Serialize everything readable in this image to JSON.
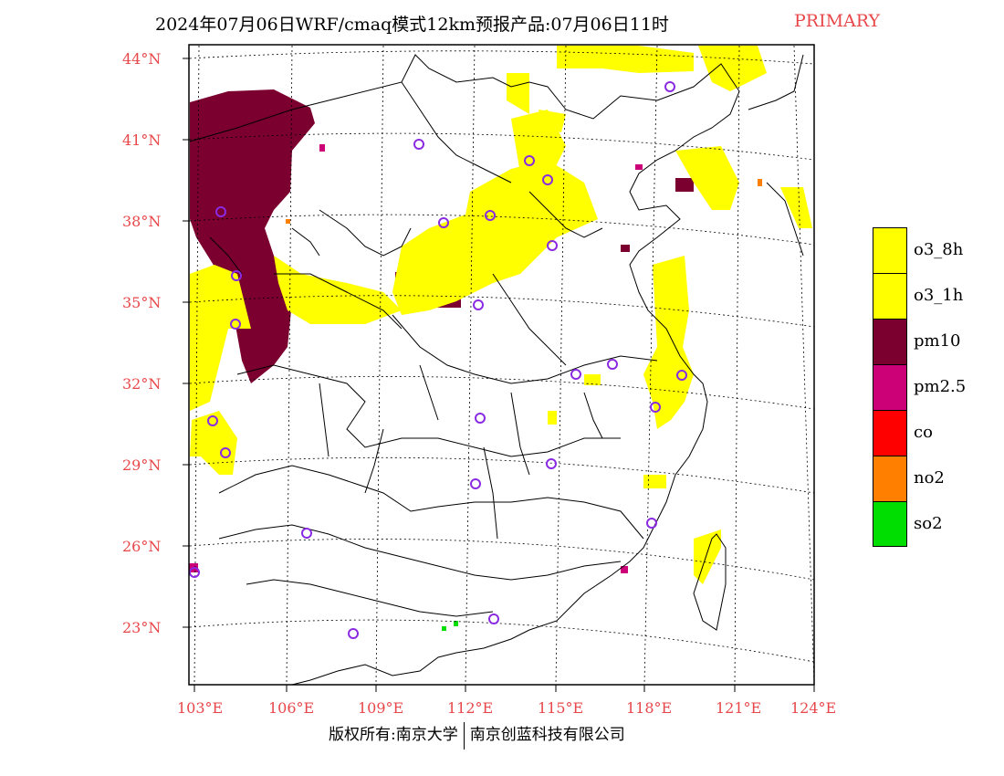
{
  "title": "2024年07月06日WRF/cmaq模式12km预报产品:07月06日11时",
  "tag": "PRIMARY",
  "lat_labels": [
    "44°N",
    "41°N",
    "38°N",
    "35°N",
    "32°N",
    "29°N",
    "26°N",
    "23°N"
  ],
  "lon_labels": [
    "103°E",
    "106°E",
    "109°E",
    "112°E",
    "115°E",
    "118°E",
    "121°E",
    "124°E"
  ],
  "legend": [
    {
      "label": "o3_8h",
      "color": "#ffff00"
    },
    {
      "label": "o3_1h",
      "color": "#ffff00"
    },
    {
      "label": "pm10",
      "color": "#7b0030"
    },
    {
      "label": "pm2.5",
      "color": "#cc0077"
    },
    {
      "label": "co",
      "color": "#ff0000"
    },
    {
      "label": "no2",
      "color": "#ff7f00"
    },
    {
      "label": "so2",
      "color": "#00dd00"
    }
  ],
  "footer": {
    "left": "版权所有:南京大学",
    "right": "南京创蓝科技有限公司"
  },
  "colors": {
    "label_red": "#e8474a",
    "station_ring": "#8a2be2"
  }
}
